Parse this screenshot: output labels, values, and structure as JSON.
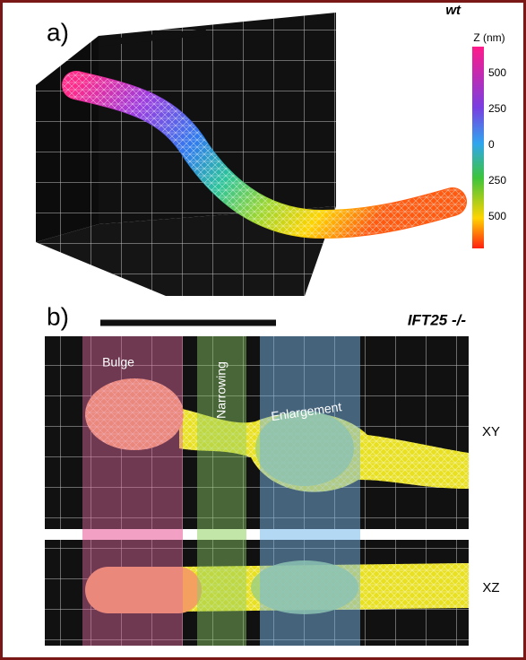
{
  "panel_a": {
    "label": "a)",
    "title": "wt",
    "colorbar": {
      "label": "Z (nm)",
      "ticks": [
        "500",
        "250",
        "0",
        "250",
        "500"
      ]
    }
  },
  "panel_b": {
    "label": "b)",
    "title": "IFT25 -/-",
    "regions": [
      "Bulge",
      "Narrowing",
      "Enlargement"
    ],
    "views": [
      "XY",
      "XZ"
    ]
  }
}
